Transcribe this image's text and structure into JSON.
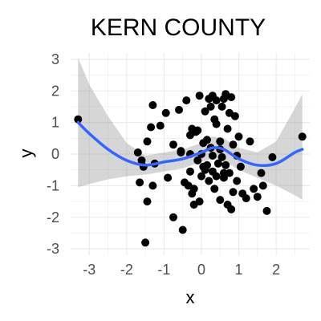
{
  "chart_data": {
    "type": "scatter",
    "title": "KERN COUNTY",
    "xlabel": "x",
    "ylabel": "y",
    "xlim": [
      -3.5,
      2.9
    ],
    "ylim": [
      -3.2,
      3.2
    ],
    "xticks": [
      -3,
      -2,
      -1,
      0,
      1,
      2
    ],
    "yticks": [
      -3,
      -2,
      -1,
      0,
      1,
      2,
      3
    ],
    "xtick_labels": [
      "-3",
      "-2",
      "-1",
      "0",
      "1",
      "2"
    ],
    "ytick_labels": [
      "-3",
      "-2",
      "-1",
      "0",
      "1",
      "2",
      "3"
    ],
    "grid": true,
    "series": [
      {
        "name": "points",
        "x": [
          -3.3,
          -1.5,
          -1.55,
          -1.65,
          -1.7,
          -1.6,
          -1.45,
          -1.45,
          -1.35,
          -1.3,
          -1.3,
          -1.25,
          -1.1,
          -0.95,
          -0.9,
          -0.75,
          -0.75,
          -0.6,
          -0.55,
          -0.5,
          -0.4,
          -0.35,
          -0.3,
          -0.3,
          -0.25,
          -0.25,
          -0.2,
          -0.15,
          -0.1,
          -0.1,
          -0.05,
          -0.05,
          0.0,
          0.0,
          0.05,
          0.05,
          0.1,
          0.1,
          0.15,
          0.2,
          0.2,
          0.25,
          0.25,
          0.3,
          0.3,
          0.3,
          0.35,
          0.35,
          0.4,
          0.4,
          0.4,
          0.45,
          0.5,
          0.5,
          0.55,
          0.55,
          0.6,
          0.6,
          0.65,
          0.65,
          0.7,
          0.7,
          0.75,
          0.75,
          0.8,
          0.8,
          0.85,
          0.85,
          0.9,
          0.95,
          1.0,
          1.05,
          1.1,
          1.2,
          1.3,
          1.4,
          1.5,
          1.6,
          1.65,
          1.75,
          1.9,
          2.7,
          -0.55,
          -0.45,
          -0.3,
          -0.2,
          0.15,
          0.5,
          0.6,
          0.95
        ],
        "y": [
          1.1,
          -2.8,
          -0.4,
          -0.9,
          0.05,
          -0.2,
          -1.5,
          0.4,
          0.85,
          -1.0,
          1.55,
          -0.3,
          0.9,
          1.3,
          -0.75,
          -2.0,
          0.3,
          1.4,
          0.05,
          -2.4,
          1.7,
          -1.0,
          0.6,
          -0.55,
          0.8,
          -1.25,
          -1.6,
          0.7,
          -0.2,
          0.75,
          1.85,
          -1.5,
          0.0,
          -0.7,
          0.35,
          -0.4,
          1.35,
          -0.5,
          -0.35,
          1.75,
          -0.85,
          1.5,
          0.2,
          1.85,
          -0.05,
          -0.55,
          1.1,
          -1.1,
          1.7,
          0.95,
          -0.7,
          -0.3,
          0.4,
          -1.45,
          1.5,
          -0.1,
          1.75,
          -0.75,
          1.9,
          -0.35,
          0.8,
          -1.6,
          1.3,
          -0.6,
          1.8,
          -1.75,
          0.3,
          -1.2,
          1.2,
          -0.85,
          0.55,
          -0.4,
          -1.25,
          -1.4,
          0.4,
          -1.1,
          -1.35,
          -0.6,
          -1.0,
          -1.8,
          -0.1,
          0.55,
          0.1,
          -0.9,
          0.0,
          -1.1,
          0.45,
          0.15,
          -0.6,
          -0.05
        ]
      },
      {
        "name": "smooth",
        "x": [
          -3.3,
          -3.0,
          -2.5,
          -2.0,
          -1.5,
          -1.0,
          -0.5,
          0.0,
          0.3,
          0.6,
          1.0,
          1.5,
          2.0,
          2.5,
          2.7
        ],
        "y": [
          1.0,
          0.65,
          0.15,
          -0.2,
          -0.35,
          -0.25,
          -0.15,
          0.05,
          0.2,
          0.15,
          -0.15,
          -0.35,
          -0.3,
          0.05,
          0.15
        ],
        "lower": [
          -1.05,
          -0.95,
          -0.8,
          -0.7,
          -0.65,
          -0.55,
          -0.45,
          -0.25,
          -0.15,
          -0.2,
          -0.5,
          -0.75,
          -1.0,
          -1.3,
          -1.45
        ],
        "upper": [
          3.05,
          2.2,
          1.2,
          0.35,
          -0.05,
          0.05,
          0.15,
          0.35,
          0.55,
          0.5,
          0.2,
          0.05,
          0.4,
          1.45,
          1.9
        ]
      }
    ],
    "colors": {
      "points": "#000000",
      "smooth_line": "#3366ff",
      "ribbon": "#999999",
      "grid": "#ebebeb",
      "tick_text": "#4d4d4d"
    }
  }
}
